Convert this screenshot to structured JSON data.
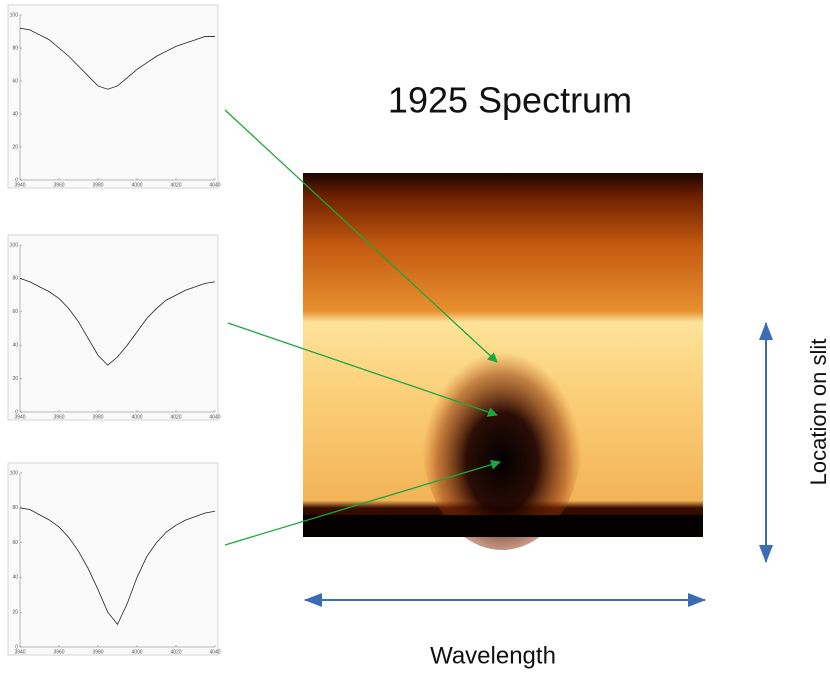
{
  "figure": {
    "title": "1925 Spectrum",
    "x_label": "Wavelength",
    "y_label": "Location on slit"
  },
  "chart_data": [
    {
      "type": "line",
      "color": "#222222",
      "x": [
        3940,
        3945,
        3950,
        3955,
        3960,
        3965,
        3970,
        3975,
        3980,
        3985,
        3990,
        3995,
        4000,
        4005,
        4010,
        4015,
        4020,
        4025,
        4030,
        4035,
        4040
      ],
      "values": [
        92,
        91,
        88,
        85,
        80,
        75,
        69,
        63,
        57,
        55,
        57,
        62,
        67,
        71,
        75,
        78,
        81,
        83,
        85,
        87,
        87
      ],
      "xlim": [
        3940,
        4040
      ],
      "xticks": [
        3940,
        3960,
        3980,
        4000,
        4020,
        4040
      ],
      "ylim": [
        0,
        100
      ],
      "yticks": [
        0,
        20,
        40,
        60,
        80,
        100
      ]
    },
    {
      "type": "line",
      "color": "#222222",
      "x": [
        3940,
        3945,
        3950,
        3955,
        3960,
        3965,
        3970,
        3975,
        3980,
        3985,
        3990,
        3995,
        4000,
        4005,
        4010,
        4015,
        4020,
        4025,
        4030,
        4035,
        4040
      ],
      "values": [
        80,
        78,
        75,
        72,
        68,
        62,
        54,
        44,
        34,
        28,
        33,
        40,
        48,
        56,
        62,
        67,
        70,
        73,
        75,
        77,
        78
      ],
      "xlim": [
        3940,
        4040
      ],
      "xticks": [
        3940,
        3960,
        3980,
        4000,
        4020,
        4040
      ],
      "ylim": [
        0,
        100
      ],
      "yticks": [
        0,
        20,
        40,
        60,
        80,
        100
      ]
    },
    {
      "type": "line",
      "color": "#222222",
      "x": [
        3940,
        3945,
        3950,
        3955,
        3960,
        3965,
        3970,
        3975,
        3980,
        3985,
        3990,
        3995,
        4000,
        4005,
        4010,
        4015,
        4020,
        4025,
        4030,
        4035,
        4040
      ],
      "values": [
        80,
        79,
        76,
        73,
        69,
        63,
        55,
        45,
        33,
        20,
        13,
        25,
        40,
        52,
        60,
        66,
        70,
        73,
        75,
        77,
        78
      ],
      "xlim": [
        3940,
        4040
      ],
      "xticks": [
        3940,
        3960,
        3980,
        4000,
        4020,
        4040
      ],
      "ylim": [
        0,
        100
      ],
      "yticks": [
        0,
        20,
        40,
        60,
        80,
        100
      ]
    }
  ]
}
